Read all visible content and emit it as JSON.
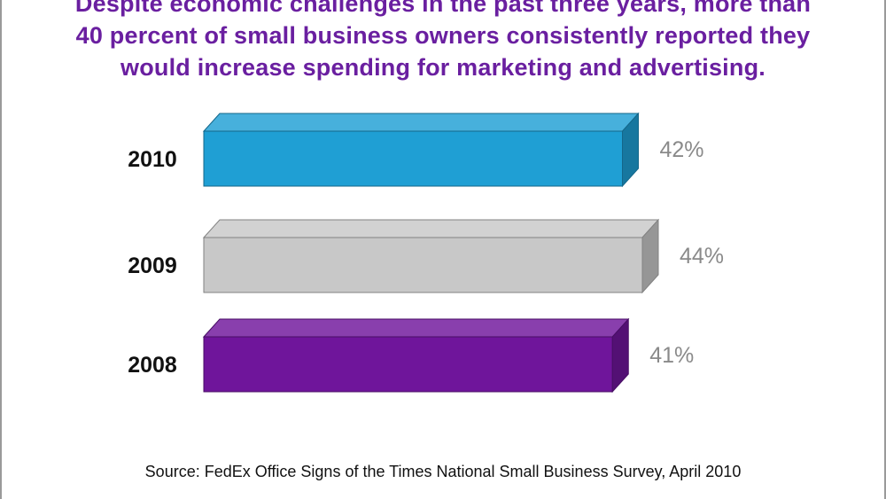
{
  "chart_data": {
    "type": "bar",
    "orientation": "horizontal",
    "title_lines": [
      "Despite economic challenges in the past three years, more than",
      "40 percent of small business owners consistently reported they",
      "would increase spending for marketing and advertising."
    ],
    "categories": [
      "2010",
      "2009",
      "2008"
    ],
    "values": [
      42,
      44,
      41
    ],
    "value_labels": [
      "42%",
      "44%",
      "41%"
    ],
    "bar_colors": [
      "#1f9fd4",
      "#c8c8c8",
      "#6f159b"
    ],
    "unit": "%",
    "grid": false,
    "source": "Source: FedEx Office Signs of the Times National Small Business Survey, April 2010"
  }
}
